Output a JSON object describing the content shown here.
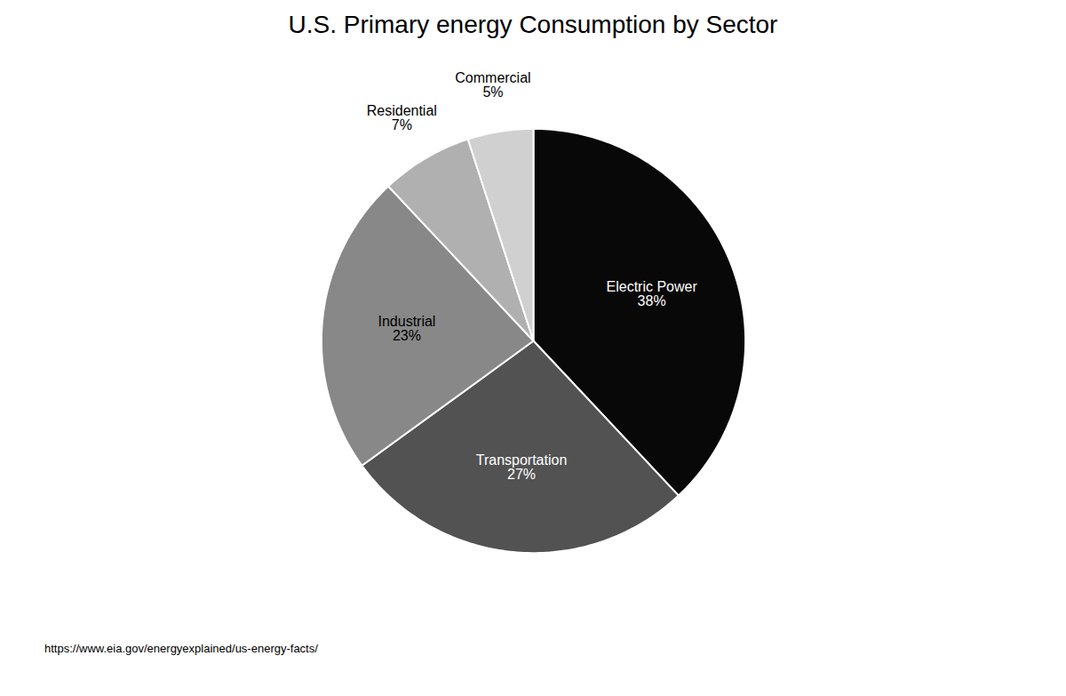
{
  "chart_data": {
    "type": "pie",
    "title": "U.S. Primary energy Consumption by Sector",
    "categories": [
      "Electric Power",
      "Transportation",
      "Industrial",
      "Residential",
      "Commercial"
    ],
    "values": [
      38,
      27,
      23,
      7,
      5
    ],
    "value_labels": [
      "38%",
      "27%",
      "23%",
      "7%",
      "5%"
    ],
    "colors": [
      "#080808",
      "#525252",
      "#888888",
      "#b0b0b0",
      "#d0d0d0"
    ],
    "data_labels": true,
    "caption": "https://www.eia.gov/energyexplained/us-energy-facts/"
  }
}
